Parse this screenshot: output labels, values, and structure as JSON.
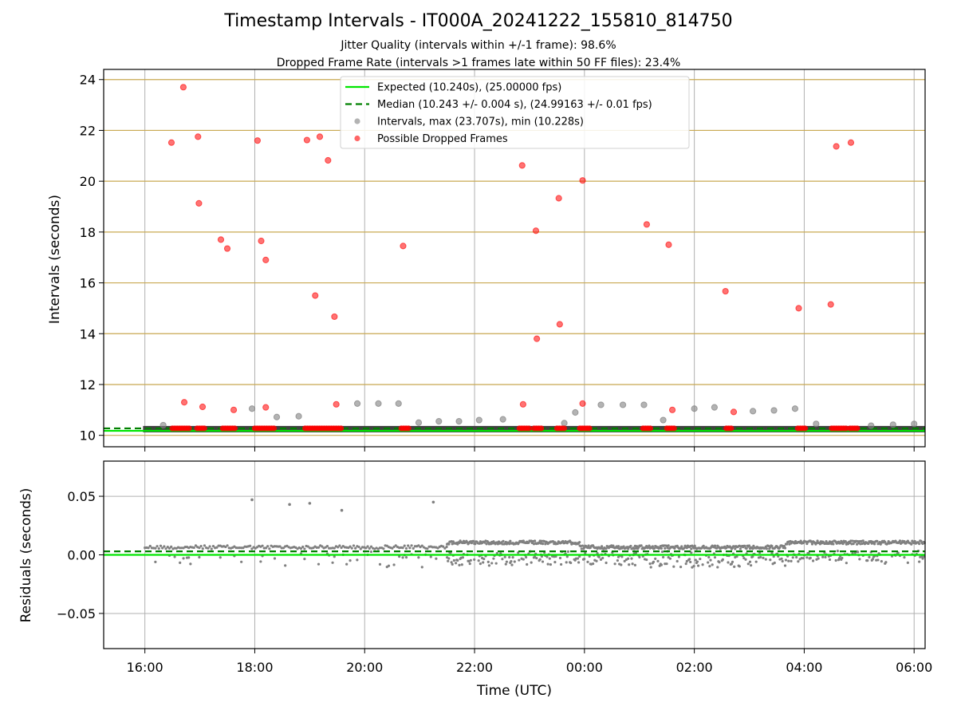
{
  "title": "Timestamp Intervals - IT000A_20241222_155810_814750",
  "subtitle_1": "Jitter Quality (intervals within +/-1 frame): 98.6%",
  "subtitle_2": "Dropped Frame Rate (intervals >1 frames late within 50 FF files): 23.4%",
  "colors": {
    "expected": "#00e600",
    "median": "#008000",
    "intervals": "#808080",
    "dropped": "#ff0000",
    "hgrid_top": "#c8a850",
    "grid": "#b0b0b0"
  },
  "chart_data": [
    {
      "type": "scatter",
      "panel": "intervals",
      "title": "",
      "xlabel": "",
      "ylabel": "Intervals (seconds)",
      "x_range": [
        "2024-12-22T15:15",
        "2024-12-23T06:12"
      ],
      "ylim": [
        9.55,
        24.4
      ],
      "yticks": [
        10,
        12,
        14,
        16,
        18,
        20,
        22,
        24
      ],
      "yticklabels": [
        "10",
        "12",
        "14",
        "16",
        "18",
        "20",
        "22",
        "24"
      ],
      "xticks": [
        "2024-12-22T16:00",
        "2024-12-22T18:00",
        "2024-12-22T20:00",
        "2024-12-22T22:00",
        "2024-12-23T00:00",
        "2024-12-23T02:00",
        "2024-12-23T04:00",
        "2024-12-23T06:00"
      ],
      "grid": "both",
      "legend_position": "top-center",
      "legend": [
        {
          "label": "Expected (10.240s), (25.00000 fps)",
          "style": "solid-line",
          "color": "#00e600"
        },
        {
          "label": "Median (10.243 +/- 0.004 s), (24.99163 +/- 0.01 fps)",
          "style": "dashed-line",
          "color": "#008000"
        },
        {
          "label": "Intervals, max (23.707s), min (10.228s)",
          "style": "marker",
          "color": "#808080"
        },
        {
          "label": "Possible Dropped Frames",
          "style": "marker",
          "color": "#ff0000"
        }
      ],
      "lines": [
        {
          "name": "Expected",
          "y": 10.24
        },
        {
          "name": "Median",
          "y": 10.243
        }
      ],
      "baseline_cluster": {
        "y": 10.243,
        "x_start": "2024-12-22T15:58",
        "x_end": "2024-12-23T06:12"
      },
      "series": [
        {
          "name": "Intervals",
          "points": [
            [
              "2024-12-22T16:20",
              10.4
            ],
            [
              "2024-12-22T17:57",
              11.05
            ],
            [
              "2024-12-22T18:24",
              10.72
            ],
            [
              "2024-12-22T18:48",
              10.75
            ],
            [
              "2024-12-22T19:52",
              11.25
            ],
            [
              "2024-12-22T20:15",
              11.25
            ],
            [
              "2024-12-22T20:37",
              11.25
            ],
            [
              "2024-12-22T20:59",
              10.5
            ],
            [
              "2024-12-22T21:21",
              10.55
            ],
            [
              "2024-12-22T21:43",
              10.55
            ],
            [
              "2024-12-22T22:05",
              10.6
            ],
            [
              "2024-12-22T22:31",
              10.63
            ],
            [
              "2024-12-22T23:38",
              10.48
            ],
            [
              "2024-12-22T23:50",
              10.9
            ],
            [
              "2024-12-23T00:18",
              11.2
            ],
            [
              "2024-12-23T00:42",
              11.2
            ],
            [
              "2024-12-23T01:05",
              11.2
            ],
            [
              "2024-12-23T01:26",
              10.6
            ],
            [
              "2024-12-23T02:00",
              11.05
            ],
            [
              "2024-12-23T02:22",
              11.1
            ],
            [
              "2024-12-23T03:04",
              10.95
            ],
            [
              "2024-12-23T03:27",
              10.98
            ],
            [
              "2024-12-23T03:50",
              11.05
            ],
            [
              "2024-12-23T04:13",
              10.45
            ],
            [
              "2024-12-23T05:13",
              10.38
            ],
            [
              "2024-12-23T05:37",
              10.42
            ],
            [
              "2024-12-23T06:00",
              10.45
            ]
          ]
        },
        {
          "name": "Possible Dropped Frames",
          "points": [
            [
              "2024-12-22T16:29",
              21.52
            ],
            [
              "2024-12-22T16:42",
              23.7
            ],
            [
              "2024-12-22T16:43",
              11.3
            ],
            [
              "2024-12-22T16:58",
              21.75
            ],
            [
              "2024-12-22T16:59",
              19.13
            ],
            [
              "2024-12-22T17:03",
              11.12
            ],
            [
              "2024-12-22T17:23",
              17.7
            ],
            [
              "2024-12-22T17:30",
              17.35
            ],
            [
              "2024-12-22T17:37",
              11.0
            ],
            [
              "2024-12-22T18:03",
              21.6
            ],
            [
              "2024-12-22T18:07",
              17.65
            ],
            [
              "2024-12-22T18:12",
              16.9
            ],
            [
              "2024-12-22T18:12",
              11.1
            ],
            [
              "2024-12-22T18:57",
              21.62
            ],
            [
              "2024-12-22T19:06",
              15.5
            ],
            [
              "2024-12-22T19:11",
              21.75
            ],
            [
              "2024-12-22T19:20",
              20.82
            ],
            [
              "2024-12-22T19:27",
              14.67
            ],
            [
              "2024-12-22T19:29",
              11.22
            ],
            [
              "2024-12-22T20:42",
              17.45
            ],
            [
              "2024-12-22T22:52",
              20.62
            ],
            [
              "2024-12-22T22:53",
              11.22
            ],
            [
              "2024-12-22T23:07",
              18.05
            ],
            [
              "2024-12-22T23:08",
              13.8
            ],
            [
              "2024-12-22T23:32",
              19.33
            ],
            [
              "2024-12-22T23:33",
              14.37
            ],
            [
              "2024-12-22T23:58",
              20.03
            ],
            [
              "2024-12-22T23:58",
              11.25
            ],
            [
              "2024-12-23T01:08",
              18.3
            ],
            [
              "2024-12-23T01:32",
              17.5
            ],
            [
              "2024-12-23T01:36",
              11.0
            ],
            [
              "2024-12-23T02:34",
              15.67
            ],
            [
              "2024-12-23T02:43",
              10.92
            ],
            [
              "2024-12-23T03:54",
              15.0
            ],
            [
              "2024-12-23T04:29",
              15.15
            ],
            [
              "2024-12-23T04:35",
              21.37
            ],
            [
              "2024-12-23T04:51",
              21.52
            ]
          ]
        },
        {
          "name": "Possible Dropped Frames (cluster runs at baseline)",
          "runs": [
            [
              "2024-12-22T16:30",
              "2024-12-22T16:50"
            ],
            [
              "2024-12-22T16:57",
              "2024-12-22T17:05"
            ],
            [
              "2024-12-22T17:25",
              "2024-12-22T17:40"
            ],
            [
              "2024-12-22T18:00",
              "2024-12-22T18:21"
            ],
            [
              "2024-12-22T18:55",
              "2024-12-22T19:35"
            ],
            [
              "2024-12-22T20:40",
              "2024-12-22T20:48"
            ],
            [
              "2024-12-22T22:49",
              "2024-12-22T23:00"
            ],
            [
              "2024-12-22T23:05",
              "2024-12-22T23:15"
            ],
            [
              "2024-12-22T23:30",
              "2024-12-22T23:38"
            ],
            [
              "2024-12-22T23:55",
              "2024-12-23T00:06"
            ],
            [
              "2024-12-23T01:04",
              "2024-12-23T01:13"
            ],
            [
              "2024-12-23T01:30",
              "2024-12-23T01:38"
            ],
            [
              "2024-12-23T02:35",
              "2024-12-23T02:42"
            ],
            [
              "2024-12-23T03:53",
              "2024-12-23T04:02"
            ],
            [
              "2024-12-23T04:30",
              "2024-12-23T04:46"
            ],
            [
              "2024-12-23T04:50",
              "2024-12-23T05:00"
            ]
          ]
        }
      ]
    },
    {
      "type": "scatter",
      "panel": "residuals",
      "title": "",
      "xlabel": "Time (UTC)",
      "ylabel": "Residuals (seconds)",
      "x_range": [
        "2024-12-22T15:15",
        "2024-12-23T06:12"
      ],
      "ylim": [
        -0.08,
        0.08
      ],
      "yticks": [
        -0.05,
        0.0,
        0.05
      ],
      "yticklabels": [
        "−0.05",
        "0.00",
        "0.05"
      ],
      "xticks": [
        "2024-12-22T16:00",
        "2024-12-22T18:00",
        "2024-12-22T20:00",
        "2024-12-22T22:00",
        "2024-12-23T00:00",
        "2024-12-23T02:00",
        "2024-12-23T04:00",
        "2024-12-23T06:00"
      ],
      "xticklabels": [
        "16:00",
        "18:00",
        "20:00",
        "22:00",
        "00:00",
        "02:00",
        "04:00",
        "06:00"
      ],
      "grid": "both",
      "lines": [
        {
          "name": "Expected",
          "y": 0.0
        },
        {
          "name": "Median",
          "y": 0.003
        }
      ],
      "series": [
        {
          "name": "Residuals (outliers)",
          "points": [
            [
              "2024-12-22T17:57",
              0.047
            ],
            [
              "2024-12-22T18:38",
              0.043
            ],
            [
              "2024-12-22T19:00",
              0.044
            ],
            [
              "2024-12-22T19:35",
              0.038
            ],
            [
              "2024-12-22T21:15",
              0.045
            ]
          ]
        },
        {
          "name": "Residuals (band)",
          "segments": [
            {
              "x_start": "2024-12-22T16:00",
              "x_end": "2024-12-22T21:30",
              "upper": 0.008,
              "lower_min": -0.012,
              "spread": "sparse"
            },
            {
              "x_start": "2024-12-22T21:30",
              "x_end": "2024-12-22T23:55",
              "upper": 0.012,
              "lower_min": -0.01,
              "spread": "dense"
            },
            {
              "x_start": "2024-12-22T23:55",
              "x_end": "2024-12-23T03:40",
              "upper": 0.008,
              "lower_min": -0.012,
              "spread": "dense"
            },
            {
              "x_start": "2024-12-23T03:40",
              "x_end": "2024-12-23T06:12",
              "upper": 0.012,
              "lower_min": -0.008,
              "spread": "dense"
            }
          ]
        }
      ]
    }
  ]
}
